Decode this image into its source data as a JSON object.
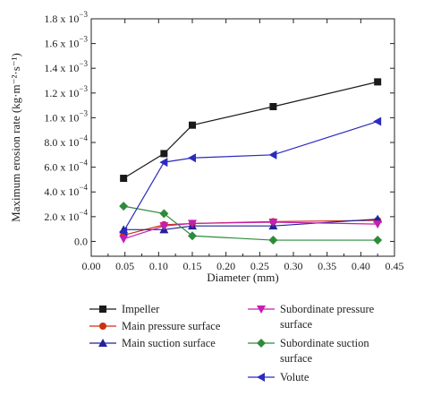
{
  "chart_data": {
    "type": "line",
    "xlabel": "Diameter (mm)",
    "ylabel": "Maximum erosion rate (kg·m⁻²·s⁻¹)",
    "xlim": [
      0.0,
      0.45
    ],
    "ylim": [
      -0.00012,
      0.0018
    ],
    "x_ticks": [
      0.0,
      0.05,
      0.1,
      0.15,
      0.2,
      0.25,
      0.3,
      0.35,
      0.4,
      0.45
    ],
    "x_tick_labels": [
      "0.00",
      "0.05",
      "0.10",
      "0.15",
      "0.20",
      "0.25",
      "0.30",
      "0.35",
      "0.40",
      "0.45"
    ],
    "y_ticks": [
      0.0,
      0.0002,
      0.0004,
      0.0006,
      0.0008,
      0.001,
      0.0012,
      0.0014,
      0.0016,
      0.0018
    ],
    "y_tick_labels": [
      {
        "mantissa": "0.0",
        "exp": ""
      },
      {
        "mantissa": "2.0 x 10",
        "exp": "−4"
      },
      {
        "mantissa": "4.0 x 10",
        "exp": "−4"
      },
      {
        "mantissa": "6.0 x 10",
        "exp": "−4"
      },
      {
        "mantissa": "8.0 x 10",
        "exp": "−4"
      },
      {
        "mantissa": "1.0 x 10",
        "exp": "−3"
      },
      {
        "mantissa": "1.2 x 10",
        "exp": "−3"
      },
      {
        "mantissa": "1.4 x 10",
        "exp": "−3"
      },
      {
        "mantissa": "1.6 x 10",
        "exp": "−3"
      },
      {
        "mantissa": "1.8 x 10",
        "exp": "−3"
      }
    ],
    "x": [
      0.048,
      0.108,
      0.15,
      0.27,
      0.425
    ],
    "series": [
      {
        "name": "Impeller",
        "color": "#1a1a1a",
        "marker": "square",
        "values": [
          0.00051,
          0.00071,
          0.00094,
          0.00109,
          0.00129
        ]
      },
      {
        "name": "Main pressure surface",
        "color": "#cc3311",
        "marker": "circle",
        "values": [
          5e-05,
          0.000135,
          0.000145,
          0.00016,
          0.00017
        ]
      },
      {
        "name": "Main suction surface",
        "color": "#22229a",
        "marker": "triangle-up",
        "values": [
          9.5e-05,
          9.5e-05,
          0.000125,
          0.000125,
          0.00018
        ]
      },
      {
        "name": "Subordinate pressure surface",
        "color": "#c51db5",
        "marker": "triangle-down",
        "values": [
          2e-05,
          0.000125,
          0.000145,
          0.000155,
          0.00014
        ]
      },
      {
        "name": "Subordinate suction surface",
        "color": "#2e8b3a",
        "marker": "diamond",
        "values": [
          0.000285,
          0.000225,
          4.5e-05,
          1e-05,
          1e-05
        ]
      },
      {
        "name": "Volute",
        "color": "#2b2bc0",
        "marker": "triangle-left",
        "values": [
          8e-05,
          0.00064,
          0.000675,
          0.0007,
          0.00097
        ]
      }
    ]
  },
  "legend": {
    "col1": [
      {
        "series": 0,
        "line1": "Impeller",
        "line2": ""
      },
      {
        "series": 1,
        "line1": "Main pressure surface",
        "line2": ""
      },
      {
        "series": 2,
        "line1": "Main suction surface",
        "line2": ""
      }
    ],
    "col2": [
      {
        "series": 3,
        "line1": "Subordinate pressure",
        "line2": "surface"
      },
      {
        "series": 4,
        "line1": "Subordinate suction",
        "line2": "surface"
      },
      {
        "series": 5,
        "line1": "Volute",
        "line2": ""
      }
    ]
  }
}
